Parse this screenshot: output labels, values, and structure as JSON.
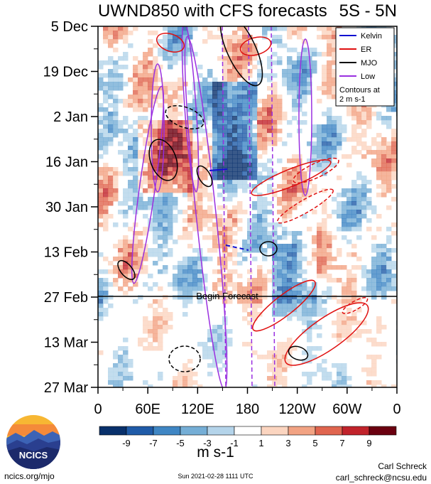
{
  "chart_data": {
    "type": "heatmap",
    "title": "UWND850 with CFS forecasts",
    "lat_band": "5S - 5N",
    "x_ticks": [
      "0",
      "60E",
      "120E",
      "180",
      "120W",
      "60W",
      "0"
    ],
    "y_ticks": [
      "5 Dec",
      "19 Dec",
      "2 Jan",
      "16 Jan",
      "30 Jan",
      "13 Feb",
      "27 Feb",
      "13 Mar",
      "27 Mar"
    ],
    "forecast_label": "Begin Forecast",
    "forecast_start": "27 Feb",
    "legend": {
      "placement": "top-right",
      "items": [
        {
          "label": "Kelvin",
          "color": "#1010d0"
        },
        {
          "label": "ER",
          "color": "#e01010"
        },
        {
          "label": "MJO",
          "color": "#000000"
        },
        {
          "label": "Low",
          "color": "#9a30e0"
        }
      ],
      "note_line1": "Contours at",
      "note_line2": "2 m s-1"
    },
    "colorbar": {
      "levels": [
        "-9",
        "-7",
        "-5",
        "-3",
        "-1",
        "1",
        "3",
        "5",
        "7",
        "9"
      ],
      "colors": [
        "#08306b",
        "#1f5ba8",
        "#3f86c4",
        "#75aed6",
        "#b4d4ea",
        "#ffffff",
        "#fbd5c0",
        "#f2a383",
        "#e0654f",
        "#c1232b",
        "#6b0010"
      ],
      "units": "m s-1"
    }
  },
  "footer": {
    "site": "ncics.org/mjo",
    "timestamp": "Sun 2021-02-28 1111 UTC",
    "author": "Carl Schreck",
    "email": "carl_schreck@ncsu.edu",
    "logo_text": "NCICS"
  }
}
